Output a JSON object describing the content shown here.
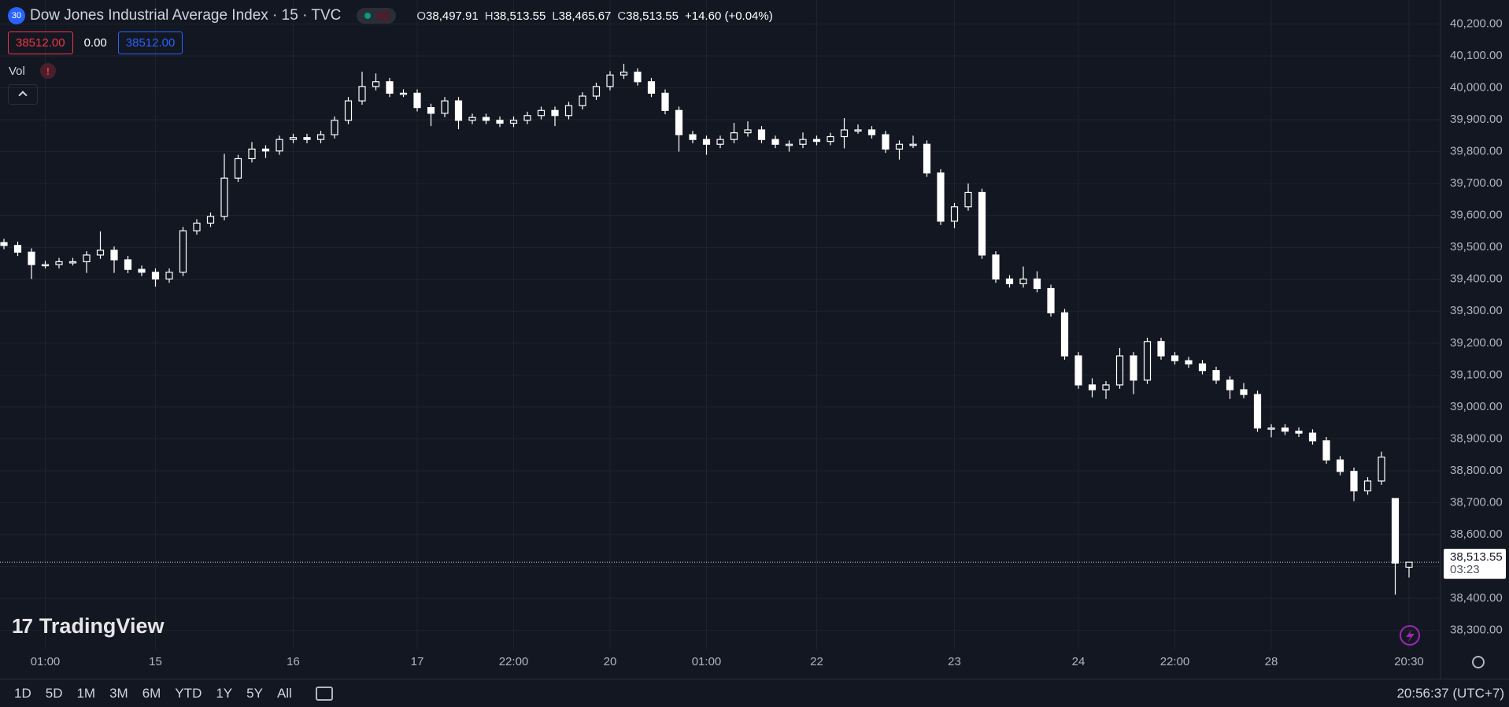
{
  "header": {
    "badge": "30",
    "title": "Dow Jones Industrial Average Index · 15 · TVC",
    "ohlc": [
      {
        "key": "O",
        "value": "38,497.91"
      },
      {
        "key": "H",
        "value": "38,513.55"
      },
      {
        "key": "L",
        "value": "38,465.67"
      },
      {
        "key": "C",
        "value": "38,513.55"
      }
    ],
    "change": "+14.60 (+0.04%)"
  },
  "order": {
    "sell": "38512.00",
    "spread": "0.00",
    "buy": "38512.00"
  },
  "indicator": "Vol",
  "watermark": "TradingView",
  "chart_data": {
    "type": "candlestick",
    "open": [
      39515,
      39506,
      39485,
      39446,
      39446,
      39455,
      39455,
      39476,
      39491,
      39461,
      39431,
      39422,
      39401,
      39422,
      39552,
      39576,
      39597,
      39717,
      39778,
      39808,
      39802,
      39838,
      39844,
      39838,
      39853,
      39898,
      39959,
      40004,
      40019,
      39983,
      39983,
      39938,
      39920,
      39959,
      39898,
      39907,
      39898,
      39889,
      39898,
      39913,
      39929,
      39913,
      39944,
      39974,
      40004,
      40040,
      40049,
      40019,
      39983,
      39929,
      39853,
      39838,
      39823,
      39838,
      39859,
      39868,
      39838,
      39823,
      39823,
      39838,
      39832,
      39847,
      39868,
      39868,
      39853,
      39808,
      39823,
      39823,
      39733,
      39582,
      39627,
      39672,
      39476,
      39401,
      39386,
      39401,
      39371,
      39295,
      39160,
      39069,
      39054,
      39069,
      39160,
      39084,
      39205,
      39160,
      39145,
      39135,
      39114,
      39084,
      39054,
      39039,
      38934,
      38934,
      38924,
      38918,
      38894,
      38834,
      38798,
      38737,
      38768,
      38713,
      38497.91
    ],
    "high": [
      39527,
      39518,
      39497,
      39458,
      39467,
      39467,
      39488,
      39550,
      39503,
      39473,
      39443,
      39434,
      39434,
      39564,
      39588,
      39609,
      39793,
      39790,
      39830,
      39820,
      39850,
      39856,
      39856,
      39865,
      39910,
      39971,
      40050,
      40045,
      40031,
      39995,
      39995,
      39950,
      39971,
      39971,
      39919,
      39919,
      39910,
      39910,
      39925,
      39941,
      39941,
      39956,
      39986,
      40016,
      40052,
      40075,
      40061,
      40031,
      39995,
      39941,
      39865,
      39850,
      39850,
      39890,
      39895,
      39880,
      39850,
      39835,
      39860,
      39850,
      39859,
      39905,
      39885,
      39880,
      39865,
      39835,
      39850,
      39835,
      39745,
      39639,
      39700,
      39684,
      39488,
      39413,
      39440,
      39425,
      39383,
      39307,
      39172,
      39090,
      39081,
      39185,
      39172,
      39217,
      39217,
      39172,
      39157,
      39147,
      39126,
      39096,
      39075,
      39051,
      38946,
      38946,
      38936,
      38930,
      38906,
      38846,
      38810,
      38780,
      38860,
      38713,
      38513.55
    ],
    "low": [
      39494,
      39473,
      39401,
      39434,
      39434,
      39443,
      39420,
      39464,
      39420,
      39419,
      39410,
      39377,
      39389,
      39410,
      39540,
      39564,
      39585,
      39705,
      39766,
      39780,
      39790,
      39826,
      39826,
      39826,
      39841,
      39886,
      39947,
      39992,
      39971,
      39971,
      39926,
      39880,
      39908,
      39870,
      39886,
      39886,
      39877,
      39877,
      39886,
      39901,
      39880,
      39901,
      39932,
      39962,
      39992,
      40028,
      40007,
      39971,
      39917,
      39800,
      39826,
      39790,
      39811,
      39826,
      39847,
      39826,
      39811,
      39800,
      39811,
      39820,
      39820,
      39810,
      39856,
      39841,
      39796,
      39775,
      39811,
      39721,
      39570,
      39560,
      39615,
      39464,
      39389,
      39374,
      39374,
      39359,
      39283,
      39148,
      39057,
      39030,
      39025,
      39057,
      39040,
      39072,
      39148,
      39133,
      39123,
      39102,
      39072,
      39025,
      39027,
      38922,
      38905,
      38912,
      38906,
      38882,
      38822,
      38786,
      38705,
      38725,
      38756,
      38412,
      38465.67
    ],
    "close": [
      39506,
      39485,
      39446,
      39446,
      39455,
      39455,
      39476,
      39491,
      39461,
      39431,
      39422,
      39401,
      39422,
      39552,
      39576,
      39597,
      39717,
      39778,
      39808,
      39802,
      39838,
      39844,
      39838,
      39853,
      39898,
      39959,
      40004,
      40019,
      39983,
      39983,
      39938,
      39920,
      39959,
      39898,
      39907,
      39898,
      39889,
      39898,
      39913,
      39929,
      39913,
      39944,
      39974,
      40004,
      40040,
      40049,
      40019,
      39983,
      39929,
      39853,
      39838,
      39823,
      39838,
      39859,
      39868,
      39838,
      39823,
      39823,
      39838,
      39832,
      39847,
      39868,
      39868,
      39853,
      39808,
      39823,
      39823,
      39733,
      39582,
      39627,
      39672,
      39476,
      39401,
      39386,
      39401,
      39371,
      39295,
      39160,
      39069,
      39054,
      39069,
      39160,
      39084,
      39205,
      39160,
      39145,
      39135,
      39114,
      39084,
      39054,
      39039,
      38934,
      38934,
      38924,
      38918,
      38894,
      38834,
      38798,
      38737,
      38768,
      38843,
      38511,
      38513.55
    ],
    "xticks": [
      {
        "value": 3,
        "label": "01:00"
      },
      {
        "value": 11,
        "label": "15"
      },
      {
        "value": 21,
        "label": "16"
      },
      {
        "value": 30,
        "label": "17"
      },
      {
        "value": 37,
        "label": "22:00"
      },
      {
        "value": 44,
        "label": "20"
      },
      {
        "value": 51,
        "label": "01:00"
      },
      {
        "value": 59,
        "label": "22"
      },
      {
        "value": 69,
        "label": "23"
      },
      {
        "value": 78,
        "label": "24"
      },
      {
        "value": 85,
        "label": "22:00"
      },
      {
        "value": 92,
        "label": "28"
      },
      {
        "value": 102,
        "label": "20:30"
      }
    ],
    "ylim": [
      38240,
      40275
    ],
    "yticks": [
      {
        "value": 38300,
        "label": "38,300.00"
      },
      {
        "value": 38400,
        "label": "38,400.00"
      },
      {
        "value": 38500,
        "label": "38,500.00"
      },
      {
        "value": 38600,
        "label": "38,600.00"
      },
      {
        "value": 38700,
        "label": "38,700.00"
      },
      {
        "value": 38800,
        "label": "38,800.00"
      },
      {
        "value": 38900,
        "label": "38,900.00"
      },
      {
        "value": 39000,
        "label": "39,000.00"
      },
      {
        "value": 39100,
        "label": "39,100.00"
      },
      {
        "value": 39200,
        "label": "39,200.00"
      },
      {
        "value": 39300,
        "label": "39,300.00"
      },
      {
        "value": 39400,
        "label": "39,400.00"
      },
      {
        "value": 39500,
        "label": "39,500.00"
      },
      {
        "value": 39600,
        "label": "39,600.00"
      },
      {
        "value": 39700,
        "label": "39,700.00"
      },
      {
        "value": 39800,
        "label": "39,800.00"
      },
      {
        "value": 39900,
        "label": "39,900.00"
      },
      {
        "value": 40000,
        "label": "40,000.00"
      },
      {
        "value": 40100,
        "label": "40,100.00"
      },
      {
        "value": 40200,
        "label": "40,200.00"
      }
    ],
    "grid": true,
    "color": "#ffffff",
    "background": "#131722",
    "last_price_label": "38,513.55",
    "countdown": "03:23"
  },
  "footer": {
    "ranges": [
      "1D",
      "5D",
      "1M",
      "3M",
      "6M",
      "YTD",
      "1Y",
      "5Y",
      "All"
    ],
    "clock": "20:56:37 (UTC+7)"
  }
}
